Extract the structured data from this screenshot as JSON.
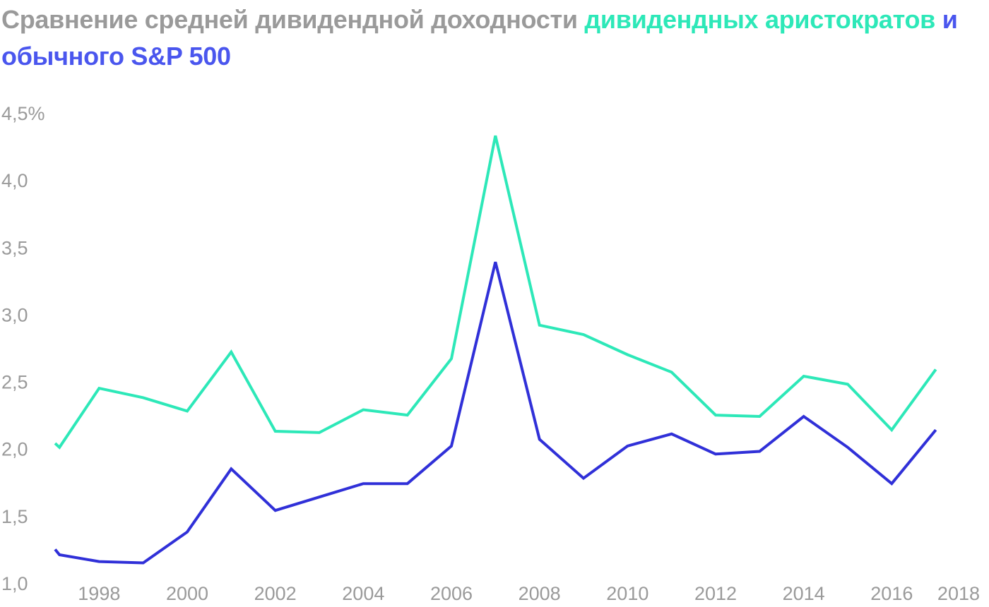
{
  "title": {
    "part1": "Сравнение средней дивидендной доходности ",
    "part2": "дивидендных аристократов",
    "part3": " и обычного S&P 500"
  },
  "chart_data": {
    "type": "line",
    "title": "Сравнение средней дивидендной доходности дивидендных аристократов и обычного S&P 500",
    "x_ticks": [
      "1998",
      "2000",
      "2002",
      "2004",
      "2006",
      "2008",
      "2010",
      "2012",
      "2014",
      "2016",
      "2018"
    ],
    "y_ticks": [
      "1,0",
      "1,5",
      "2,0",
      "2,5",
      "3,0",
      "3,5",
      "4,0",
      "4,5%"
    ],
    "xlim": [
      1997,
      2018
    ],
    "ylim": [
      1.0,
      4.5
    ],
    "grid": false,
    "legend": "none (series identified by title colors)",
    "series": [
      {
        "name": "дивидендных аристократов",
        "color": "#2de8b8",
        "x": [
          1997.0,
          1997.1,
          1998.0,
          1999.0,
          2000.0,
          2001.0,
          2002.0,
          2003.0,
          2004.0,
          2005.0,
          2006.0,
          2007.0,
          2008.0,
          2009.0,
          2010.0,
          2011.0,
          2012.0,
          2013.0,
          2014.0,
          2015.0,
          2016.0,
          2017.0
        ],
        "values": [
          2.04,
          2.01,
          2.45,
          2.38,
          2.28,
          2.72,
          2.13,
          2.12,
          2.29,
          2.25,
          2.67,
          4.33,
          2.92,
          2.85,
          2.7,
          2.57,
          2.25,
          2.24,
          2.54,
          2.48,
          2.14,
          2.59
        ]
      },
      {
        "name": "обычного S&P 500",
        "color": "#3030d8",
        "x": [
          1997.0,
          1997.1,
          1998.0,
          1999.0,
          2000.0,
          2001.0,
          2002.0,
          2003.0,
          2004.0,
          2005.0,
          2006.0,
          2007.0,
          2008.0,
          2009.0,
          2010.0,
          2011.0,
          2012.0,
          2013.0,
          2014.0,
          2015.0,
          2016.0,
          2017.0
        ],
        "values": [
          1.25,
          1.21,
          1.16,
          1.15,
          1.38,
          1.85,
          1.54,
          1.64,
          1.74,
          1.74,
          2.02,
          3.39,
          2.07,
          1.78,
          2.02,
          2.11,
          1.96,
          1.98,
          2.24,
          2.01,
          1.74,
          2.14
        ]
      }
    ]
  }
}
